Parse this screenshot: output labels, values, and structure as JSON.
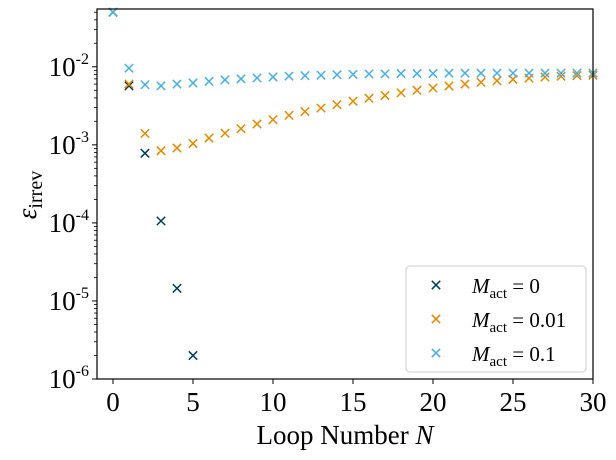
{
  "chart_data": {
    "type": "scatter",
    "xlabel": "Loop Number",
    "xlabel_var": "N",
    "ylabel_sym": "ε",
    "ylabel_sub": "irrev",
    "yscale": "log",
    "xlim": [
      -1,
      30
    ],
    "ylim": [
      1e-06,
      0.055
    ],
    "xticks": [
      0,
      5,
      10,
      15,
      20,
      25,
      30
    ],
    "xtick_labels": [
      "0",
      "5",
      "10",
      "15",
      "20",
      "25",
      "30"
    ],
    "yticks": [
      {
        "value": 0.01,
        "base": "10",
        "exp": "-2"
      },
      {
        "value": 0.001,
        "base": "10",
        "exp": "-3"
      },
      {
        "value": 0.0001,
        "base": "10",
        "exp": "-4"
      },
      {
        "value": 1e-05,
        "base": "10",
        "exp": "-5"
      },
      {
        "value": 1e-06,
        "base": "10",
        "exp": "-6"
      }
    ],
    "marker": "x",
    "legend_position": "lower-right",
    "series": [
      {
        "name": "M_act = 0",
        "label_var": "M",
        "label_sub": "act",
        "label_rhs": " = 0",
        "color": "#003d5c",
        "x": [
          0,
          1,
          2,
          3,
          4,
          5
        ],
        "y": [
          0.05,
          0.0057,
          0.00078,
          0.000106,
          1.45e-05,
          2e-06
        ]
      },
      {
        "name": "M_act = 0.01",
        "label_var": "M",
        "label_sub": "act",
        "label_rhs": " = 0.01",
        "color": "#e08a00",
        "x": [
          1,
          2,
          3,
          4,
          5,
          6,
          7,
          8,
          9,
          10,
          11,
          12,
          13,
          14,
          15,
          16,
          17,
          18,
          19,
          20,
          21,
          22,
          23,
          24,
          25,
          26,
          27,
          28,
          29,
          30
        ],
        "y": [
          0.006,
          0.0014,
          0.00084,
          0.00091,
          0.00104,
          0.00122,
          0.00141,
          0.00161,
          0.00185,
          0.0021,
          0.00239,
          0.00267,
          0.00296,
          0.00327,
          0.00362,
          0.00395,
          0.00429,
          0.00464,
          0.005,
          0.00534,
          0.00568,
          0.006,
          0.00633,
          0.00662,
          0.0069,
          0.00716,
          0.00739,
          0.00757,
          0.0077,
          0.0078
        ]
      },
      {
        "name": "M_act = 0.1",
        "label_var": "M",
        "label_sub": "act",
        "label_rhs": " = 0.1",
        "color": "#4aaee0",
        "x": [
          0,
          1,
          2,
          3,
          4,
          5,
          6,
          7,
          8,
          9,
          10,
          11,
          12,
          13,
          14,
          15,
          16,
          17,
          18,
          19,
          20,
          21,
          22,
          23,
          24,
          25,
          26,
          27,
          28,
          29,
          30
        ],
        "y": [
          0.05,
          0.0096,
          0.0059,
          0.0057,
          0.006,
          0.0062,
          0.0065,
          0.0068,
          0.007,
          0.0072,
          0.0074,
          0.0076,
          0.0077,
          0.0078,
          0.0079,
          0.008,
          0.0081,
          0.0081,
          0.0082,
          0.0082,
          0.0082,
          0.0083,
          0.0083,
          0.0083,
          0.0083,
          0.0083,
          0.0083,
          0.0083,
          0.0083,
          0.0083,
          0.0083
        ]
      }
    ]
  }
}
